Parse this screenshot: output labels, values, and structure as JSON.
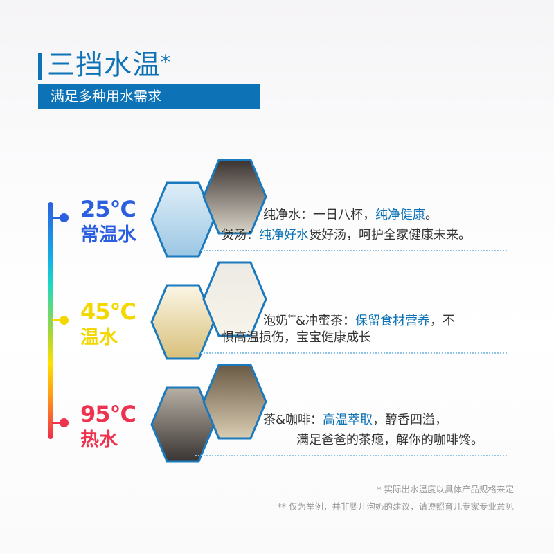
{
  "header": {
    "title": "三挡水温",
    "title_mark": "*",
    "subtitle": "满足多种用水需求"
  },
  "colors": {
    "brand": "#0e73b6",
    "cool": "#2b5fe0",
    "warm": "#f2d800",
    "hot": "#ee3350"
  },
  "rows": [
    {
      "temp": "25°C",
      "label": "常温水",
      "images": [
        "glass-of-water",
        "soup-pot"
      ],
      "line1": [
        {
          "t": "纯净水：一日八杯，",
          "hl": false
        },
        {
          "t": "纯净健康",
          "hl": true
        },
        {
          "t": "。",
          "hl": false
        }
      ],
      "line2": [
        {
          "t": "煲汤：",
          "hl": false
        },
        {
          "t": "纯净好水",
          "hl": true
        },
        {
          "t": "煲好汤，呵护全家健康未来。",
          "hl": false
        }
      ]
    },
    {
      "temp": "45°C",
      "label": "温水",
      "images": [
        "honey-tea-cup",
        "milk-bottle"
      ],
      "line1": [
        {
          "t": "泡奶",
          "hl": false
        },
        {
          "t": "**",
          "hl": false,
          "sup": true
        },
        {
          "t": "&冲蜜茶：",
          "hl": false
        },
        {
          "t": "保留食材营养",
          "hl": true
        },
        {
          "t": "，不",
          "hl": false
        }
      ],
      "line2": [
        {
          "t": "惧高温损伤，宝宝健康成长",
          "hl": false
        }
      ]
    },
    {
      "temp": "95°C",
      "label": "热水",
      "images": [
        "coffee-pour-over",
        "tea-set"
      ],
      "line1": [
        {
          "t": "茶&咖啡：",
          "hl": false
        },
        {
          "t": "高温萃取",
          "hl": true
        },
        {
          "t": "，醇香四溢，",
          "hl": false
        }
      ],
      "line2": [
        {
          "t": "满足爸爸的茶瘾，解你的咖啡馋。",
          "hl": false
        }
      ]
    }
  ],
  "footnotes": [
    "* 实际出水温度以具体产品规格来定",
    "** 仅为举例，并非婴儿泡奶的建议，请遵照育儿专家专业意见"
  ]
}
